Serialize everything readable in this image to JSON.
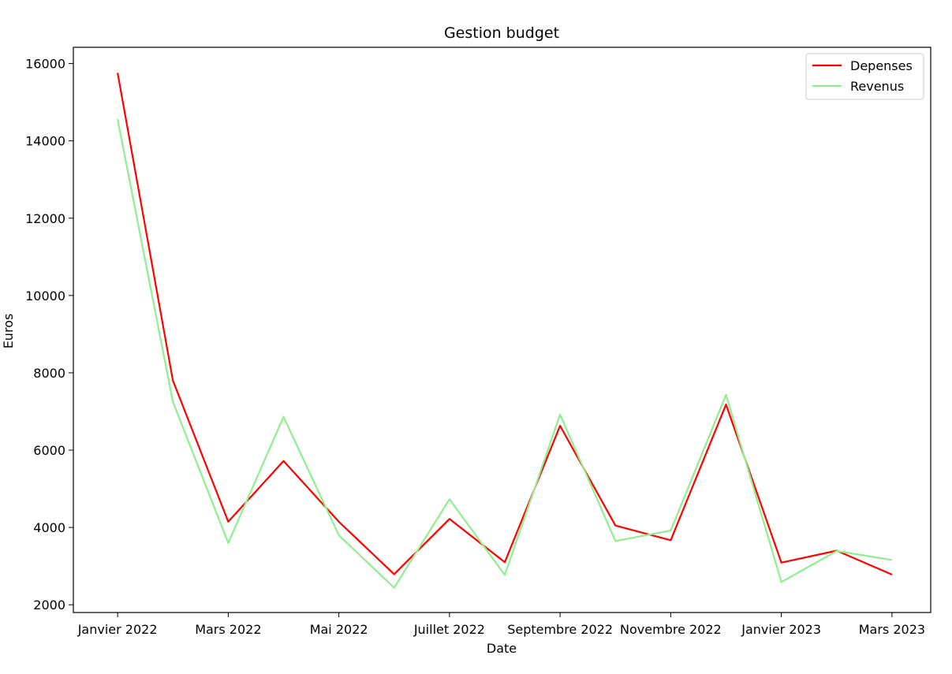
{
  "chart_data": {
    "type": "line",
    "title": "Gestion budget",
    "xlabel": "Date",
    "ylabel": "Euros",
    "x": [
      "2022-01",
      "2022-02",
      "2022-03",
      "2022-04",
      "2022-05",
      "2022-06",
      "2022-07",
      "2022-08",
      "2022-09",
      "2022-10",
      "2022-11",
      "2022-12",
      "2023-01",
      "2023-02",
      "2023-03"
    ],
    "xticks": [
      {
        "index": 0,
        "label": "Janvier 2022"
      },
      {
        "index": 2,
        "label": "Mars 2022"
      },
      {
        "index": 4,
        "label": "Mai 2022"
      },
      {
        "index": 6,
        "label": "Juillet 2022"
      },
      {
        "index": 8,
        "label": "Septembre 2022"
      },
      {
        "index": 10,
        "label": "Novembre 2022"
      },
      {
        "index": 12,
        "label": "Janvier 2023"
      },
      {
        "index": 14,
        "label": "Mars 2023"
      }
    ],
    "yticks": [
      2000,
      4000,
      6000,
      8000,
      10000,
      12000,
      14000,
      16000
    ],
    "ylim": [
      1800,
      16420
    ],
    "xlim": [
      -0.8,
      14.7
    ],
    "legend_position": "top-right",
    "series": [
      {
        "name": "Depenses",
        "color": "#ff0000",
        "values": [
          15760,
          7800,
          4150,
          5720,
          4150,
          2790,
          4220,
          3100,
          6630,
          4050,
          3670,
          7180,
          3090,
          3400,
          2780
        ]
      },
      {
        "name": "Revenus",
        "color": "#90ee90",
        "values": [
          14560,
          7250,
          3600,
          6860,
          3800,
          2440,
          4730,
          2770,
          6920,
          3650,
          3920,
          7430,
          2590,
          3390,
          3160
        ]
      }
    ]
  }
}
